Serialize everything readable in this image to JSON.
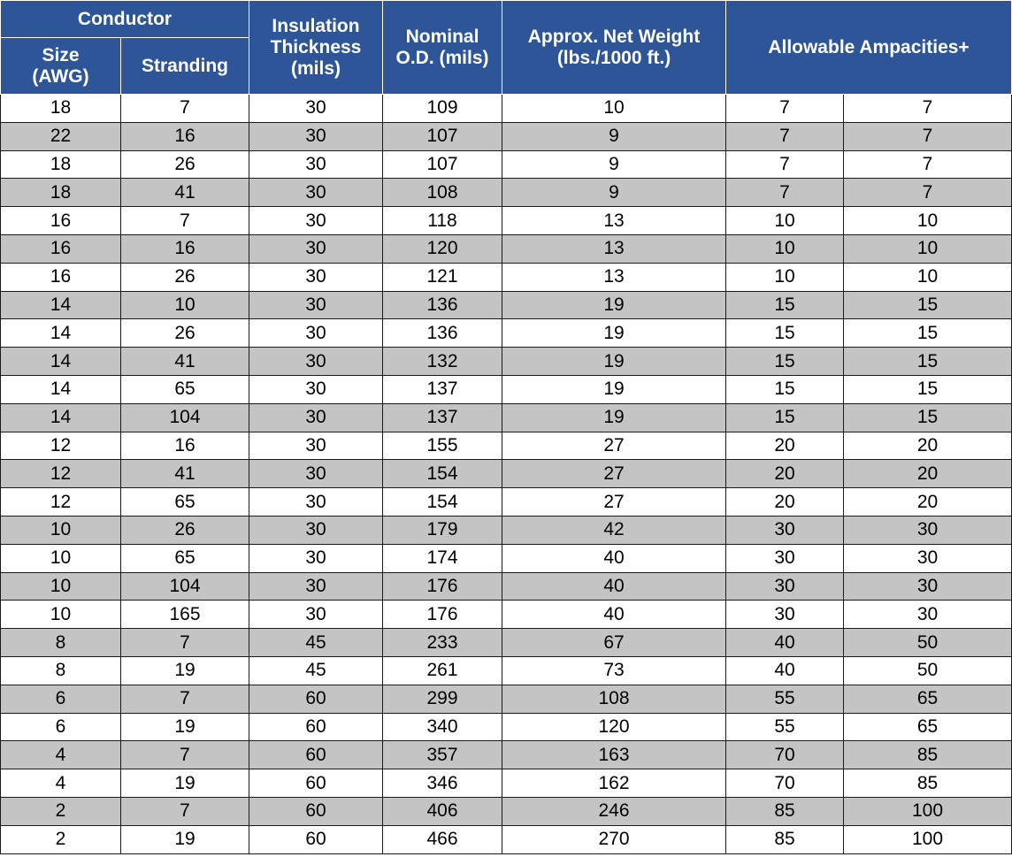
{
  "header": {
    "conductor": "Conductor",
    "size_line1": "Size",
    "size_line2": "(AWG)",
    "stranding": "Stranding",
    "insulation_line1": "Insulation",
    "insulation_line2": "Thickness",
    "insulation_line3": "(mils)",
    "od_line1": "Nominal",
    "od_line2": "O.D. (mils)",
    "weight_line1": "Approx. Net Weight",
    "weight_line2": "(lbs./1000 ft.)",
    "ampacities": "Allowable Ampacities+"
  },
  "rows": [
    [
      "18",
      "7",
      "30",
      "109",
      "10",
      "7",
      "7"
    ],
    [
      "22",
      "16",
      "30",
      "107",
      "9",
      "7",
      "7"
    ],
    [
      "18",
      "26",
      "30",
      "107",
      "9",
      "7",
      "7"
    ],
    [
      "18",
      "41",
      "30",
      "108",
      "9",
      "7",
      "7"
    ],
    [
      "16",
      "7",
      "30",
      "118",
      "13",
      "10",
      "10"
    ],
    [
      "16",
      "16",
      "30",
      "120",
      "13",
      "10",
      "10"
    ],
    [
      "16",
      "26",
      "30",
      "121",
      "13",
      "10",
      "10"
    ],
    [
      "14",
      "10",
      "30",
      "136",
      "19",
      "15",
      "15"
    ],
    [
      "14",
      "26",
      "30",
      "136",
      "19",
      "15",
      "15"
    ],
    [
      "14",
      "41",
      "30",
      "132",
      "19",
      "15",
      "15"
    ],
    [
      "14",
      "65",
      "30",
      "137",
      "19",
      "15",
      "15"
    ],
    [
      "14",
      "104",
      "30",
      "137",
      "19",
      "15",
      "15"
    ],
    [
      "12",
      "16",
      "30",
      "155",
      "27",
      "20",
      "20"
    ],
    [
      "12",
      "41",
      "30",
      "154",
      "27",
      "20",
      "20"
    ],
    [
      "12",
      "65",
      "30",
      "154",
      "27",
      "20",
      "20"
    ],
    [
      "10",
      "26",
      "30",
      "179",
      "42",
      "30",
      "30"
    ],
    [
      "10",
      "65",
      "30",
      "174",
      "40",
      "30",
      "30"
    ],
    [
      "10",
      "104",
      "30",
      "176",
      "40",
      "30",
      "30"
    ],
    [
      "10",
      "165",
      "30",
      "176",
      "40",
      "30",
      "30"
    ],
    [
      "8",
      "7",
      "45",
      "233",
      "67",
      "40",
      "50"
    ],
    [
      "8",
      "19",
      "45",
      "261",
      "73",
      "40",
      "50"
    ],
    [
      "6",
      "7",
      "60",
      "299",
      "108",
      "55",
      "65"
    ],
    [
      "6",
      "19",
      "60",
      "340",
      "120",
      "55",
      "65"
    ],
    [
      "4",
      "7",
      "60",
      "357",
      "163",
      "70",
      "85"
    ],
    [
      "4",
      "19",
      "60",
      "346",
      "162",
      "70",
      "85"
    ],
    [
      "2",
      "7",
      "60",
      "406",
      "246",
      "85",
      "100"
    ],
    [
      "2",
      "19",
      "60",
      "466",
      "270",
      "85",
      "100"
    ]
  ]
}
